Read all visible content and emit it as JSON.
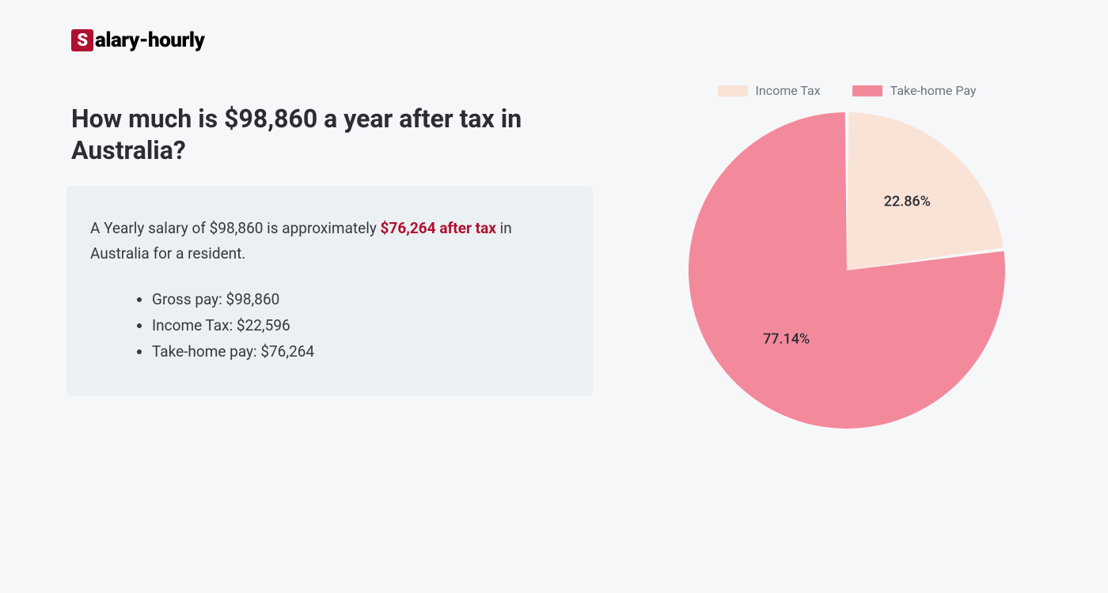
{
  "logo": {
    "s": "S",
    "rest": "alary-hourly"
  },
  "heading": "How much is $98,860 a year after tax in Australia?",
  "summary": {
    "pre": "A Yearly salary of $98,860 is approximately ",
    "highlight": "$76,264 after tax",
    "post": " in Australia for a resident."
  },
  "bullets": [
    "Gross pay: $98,860",
    "Income Tax: $22,596",
    "Take-home pay: $76,264"
  ],
  "chart": {
    "type": "pie",
    "legend": [
      {
        "label": "Income Tax",
        "color": "#f9e3d7"
      },
      {
        "label": "Take-home Pay",
        "color": "#f38a9c"
      }
    ],
    "slices": [
      {
        "name": "Income Tax",
        "value": 22.86,
        "color": "#f9e3d7",
        "label": "22.86%"
      },
      {
        "name": "Take-home Pay",
        "value": 77.14,
        "color": "#f38a9c",
        "label": "77.14%"
      }
    ],
    "background_color": "#f6f7f8",
    "label_fontsize": 18,
    "label_color": "#2a2d34",
    "legend_fontsize": 16,
    "legend_color": "#6c757d",
    "radius": 200,
    "gap_deg": 1.3,
    "start_angle_deg": -90
  },
  "colors": {
    "page_bg": "#f6f7f8",
    "card_bg": "#ebf0f2",
    "heading": "#2a2d34",
    "body_text": "#353841",
    "accent": "#b01030"
  },
  "typography": {
    "heading_fontsize": 32,
    "heading_weight": 700,
    "body_fontsize": 19,
    "logo_fontsize": 26
  }
}
